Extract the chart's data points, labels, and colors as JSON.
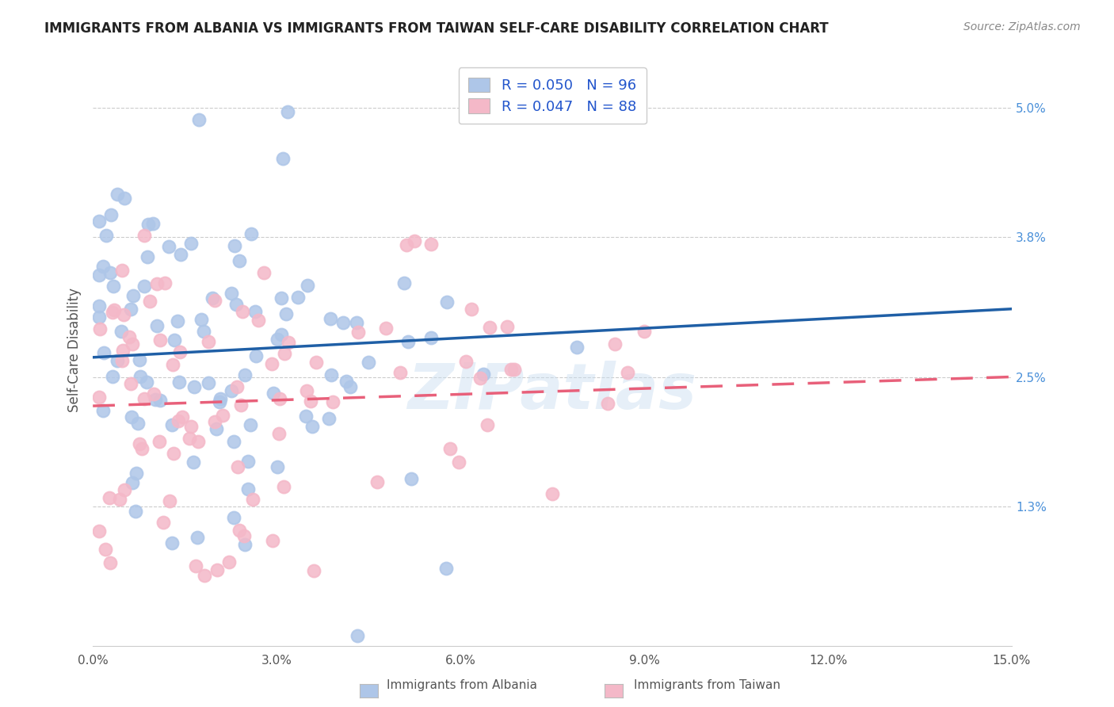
{
  "title": "IMMIGRANTS FROM ALBANIA VS IMMIGRANTS FROM TAIWAN SELF-CARE DISABILITY CORRELATION CHART",
  "source": "Source: ZipAtlas.com",
  "ylabel": "Self-Care Disability",
  "right_yticks": [
    "5.0%",
    "3.8%",
    "2.5%",
    "1.3%"
  ],
  "right_ytick_vals": [
    0.05,
    0.038,
    0.025,
    0.013
  ],
  "xlim": [
    0.0,
    0.15
  ],
  "ylim": [
    0.0,
    0.055
  ],
  "albania_R": 0.05,
  "albania_N": 96,
  "taiwan_R": 0.047,
  "taiwan_N": 88,
  "albania_color": "#aec6e8",
  "taiwan_color": "#f4b8c8",
  "albania_line_color": "#1f5fa6",
  "taiwan_line_color": "#e8607a",
  "watermark": "ZIPatlas",
  "legend_R_N_color": "#2255cc",
  "bottom_legend_labels": [
    "Immigrants from Albania",
    "Immigrants from Taiwan"
  ]
}
